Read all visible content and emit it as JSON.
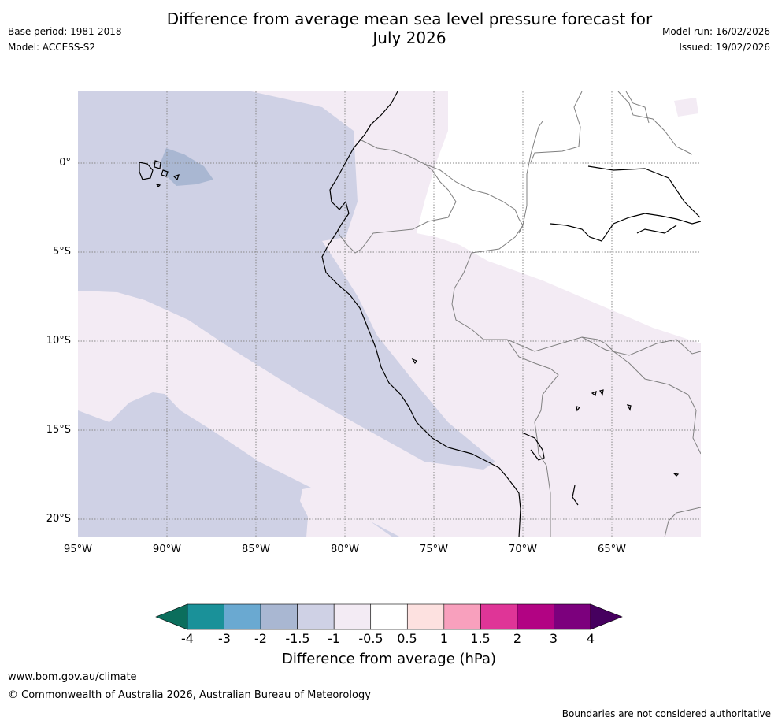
{
  "header": {
    "title_line1": "Difference from average mean sea level pressure forecast for",
    "title_line2": "July 2026",
    "base_period": "Base period: 1981-2018",
    "model": "Model: ACCESS-S2",
    "model_run": "Model run: 16/02/2026",
    "issued": "Issued: 19/02/2026"
  },
  "map": {
    "lat_labels": [
      "0°",
      "5°S",
      "10°S",
      "15°S",
      "20°S"
    ],
    "lon_labels": [
      "95°W",
      "90°W",
      "85°W",
      "80°W",
      "75°W",
      "70°W",
      "65°W"
    ]
  },
  "legend": {
    "title": "Difference from average (hPa)",
    "ticks": [
      "-4",
      "-3",
      "-2",
      "-1.5",
      "-1",
      "-0.5",
      "0.5",
      "1",
      "1.5",
      "2",
      "3",
      "4"
    ],
    "colors": {
      "below_min": "#0b6e5c",
      "bins": [
        "#1a9199",
        "#6aa9d1",
        "#a9b7d2",
        "#cfd1e5",
        "#f3ebf4",
        "#ffffff",
        "#fde1e0",
        "#f8a0bd",
        "#df3597",
        "#b20383",
        "#7c007d"
      ],
      "above_max": "#46005f"
    }
  },
  "footer": {
    "url": "www.bom.gov.au/climate",
    "copyright": "© Commonwealth of Australia 2026, Australian Bureau of Meteorology",
    "disclaimer": "Boundaries are not considered authoritative"
  }
}
